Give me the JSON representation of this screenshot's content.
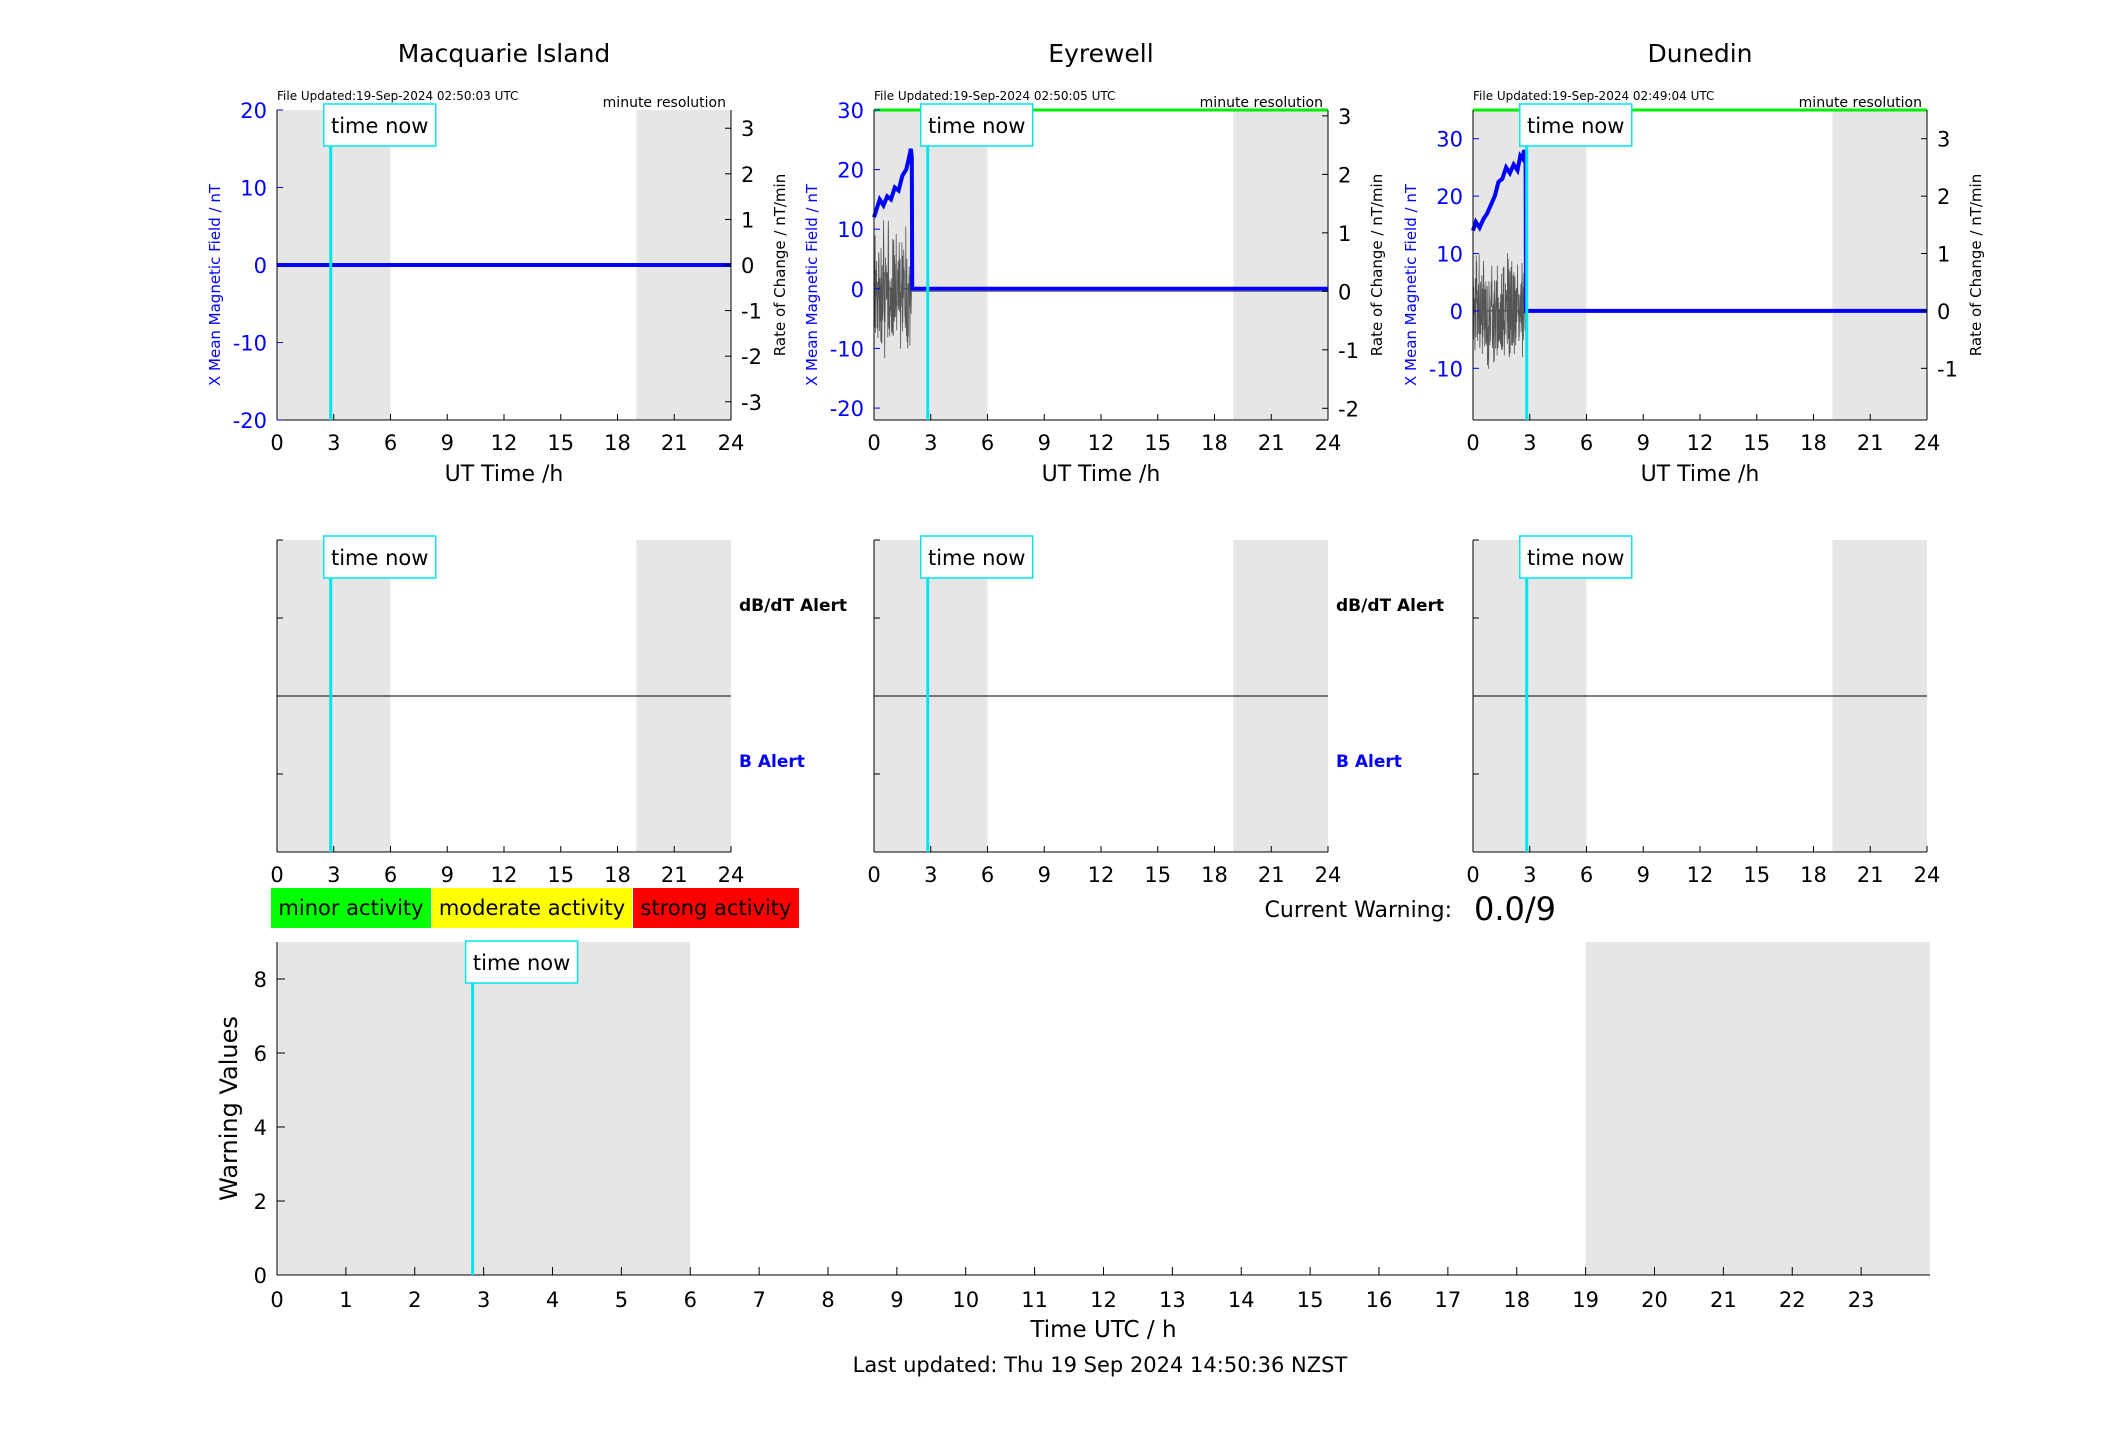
{
  "colors": {
    "shade": "#e6e6e6",
    "field_line": "#0000ff",
    "rate_line": "#555555",
    "time_now_line": "#00e5ee",
    "baseline_green": "#00ee00",
    "minor": "#00ff00",
    "moderate": "#ffff00",
    "strong": "#ff0000",
    "left_axis": "#0000ff",
    "b_alert": "#0000ff"
  },
  "time_now_label": "time now",
  "chart_data": [
    {
      "type": "line",
      "title": "Macquarie Island",
      "file_updated": "File Updated:19-Sep-2024 02:50:03 UTC",
      "resolution": "minute resolution",
      "xlabel": "UT Time /h",
      "ylabel_left": "X Mean Magnetic Field / nT",
      "ylabel_right": "Rate of Change / nT/min",
      "xlim": [
        0,
        24
      ],
      "ylim_left": [
        -20,
        20
      ],
      "ylim_right": [
        -3.4,
        3.4
      ],
      "xticks": [
        0,
        3,
        6,
        9,
        12,
        15,
        18,
        21,
        24
      ],
      "yticks_left": [
        -20,
        -10,
        0,
        10,
        20
      ],
      "yticks_right": [
        -3,
        -2,
        -1,
        0,
        1,
        2,
        3
      ],
      "shaded_hours": [
        [
          0,
          6
        ],
        [
          19,
          24
        ]
      ],
      "time_now_hour": 2.84,
      "green_level": null,
      "series": [
        {
          "role": "x_field",
          "x": [
            0,
            24
          ],
          "y": [
            0,
            0
          ]
        }
      ],
      "rate_noise": null
    },
    {
      "type": "line",
      "title": "Eyrewell",
      "file_updated": "File Updated:19-Sep-2024 02:50:05 UTC",
      "resolution": "minute resolution",
      "xlabel": "UT Time /h",
      "ylabel_left": "X Mean Magnetic Field / nT",
      "ylabel_right": "Rate of Change / nT/min",
      "xlim": [
        0,
        24
      ],
      "ylim_left": [
        -22,
        30
      ],
      "ylim_right": [
        -2.2,
        3.1
      ],
      "xticks": [
        0,
        3,
        6,
        9,
        12,
        15,
        18,
        21,
        24
      ],
      "yticks_left": [
        -20,
        -10,
        0,
        10,
        20,
        30
      ],
      "yticks_right": [
        -2,
        -1,
        0,
        1,
        2,
        3
      ],
      "shaded_hours": [
        [
          0,
          6
        ],
        [
          19,
          24
        ]
      ],
      "time_now_hour": 2.84,
      "green_level": 30,
      "series": [
        {
          "role": "x_field",
          "x": [
            0,
            0.1,
            0.3,
            0.5,
            0.7,
            0.9,
            1.1,
            1.3,
            1.5,
            1.7,
            1.85,
            1.95,
            2.0,
            2.02,
            24
          ],
          "y": [
            12,
            13,
            15,
            14,
            15.5,
            15,
            17,
            16.5,
            19,
            20,
            22,
            23.5,
            22,
            0,
            0
          ]
        }
      ],
      "rate_noise": {
        "x_end": 1.98,
        "amplitude": 1.3
      }
    },
    {
      "type": "line",
      "title": "Dunedin",
      "file_updated": "File Updated:19-Sep-2024 02:49:04 UTC",
      "resolution": "minute resolution",
      "xlabel": "UT Time /h",
      "ylabel_left": "X Mean Magnetic Field / nT",
      "ylabel_right": "Rate of Change / nT/min",
      "xlim": [
        0,
        24
      ],
      "ylim_left": [
        -19,
        35
      ],
      "ylim_right": [
        -1.9,
        3.5
      ],
      "xticks": [
        0,
        3,
        6,
        9,
        12,
        15,
        18,
        21,
        24
      ],
      "yticks_left": [
        -10,
        0,
        10,
        20,
        30
      ],
      "yticks_right": [
        -1,
        0,
        1,
        2,
        3
      ],
      "shaded_hours": [
        [
          0,
          6
        ],
        [
          19,
          24
        ]
      ],
      "time_now_hour": 2.84,
      "green_level": 35,
      "series": [
        {
          "role": "x_field",
          "x": [
            0,
            0.15,
            0.35,
            0.55,
            0.75,
            0.95,
            1.15,
            1.35,
            1.55,
            1.75,
            1.95,
            2.15,
            2.35,
            2.5,
            2.62,
            2.7,
            2.78,
            2.8,
            24
          ],
          "y": [
            14,
            15.5,
            14.5,
            16,
            17,
            18.5,
            20,
            22.5,
            23,
            25,
            24,
            25.5,
            24.5,
            27,
            26.5,
            28,
            27,
            0,
            0
          ]
        }
      ],
      "rate_noise": {
        "x_end": 2.78,
        "amplitude": 1.1
      }
    },
    {
      "type": "line",
      "title": "",
      "alerts": [
        "dB/dT Alert",
        "B Alert"
      ],
      "xlim": [
        0,
        24
      ],
      "xticks": [
        0,
        3,
        6,
        9,
        12,
        15,
        18,
        21,
        24
      ],
      "shaded_hours": [
        [
          0,
          6
        ],
        [
          19,
          24
        ]
      ],
      "time_now_hour": 2.84
    },
    {
      "type": "line",
      "title": "",
      "alerts": [
        "dB/dT Alert",
        "B Alert"
      ],
      "xlim": [
        0,
        24
      ],
      "xticks": [
        0,
        3,
        6,
        9,
        12,
        15,
        18,
        21,
        24
      ],
      "shaded_hours": [
        [
          0,
          6
        ],
        [
          19,
          24
        ]
      ],
      "time_now_hour": 2.84
    },
    {
      "type": "line",
      "title": "",
      "alerts": [],
      "xlim": [
        0,
        24
      ],
      "xticks": [
        0,
        3,
        6,
        9,
        12,
        15,
        18,
        21,
        24
      ],
      "shaded_hours": [
        [
          0,
          6
        ],
        [
          19,
          24
        ]
      ],
      "time_now_hour": 2.84
    },
    {
      "type": "line",
      "title": "",
      "xlabel": "Time UTC / h",
      "ylabel": "Warning Values",
      "xlim": [
        0,
        24
      ],
      "ylim": [
        0,
        9
      ],
      "xticks": [
        0,
        1,
        2,
        3,
        4,
        5,
        6,
        7,
        8,
        9,
        10,
        11,
        12,
        13,
        14,
        15,
        16,
        17,
        18,
        19,
        20,
        21,
        22,
        23
      ],
      "yticks": [
        0,
        2,
        4,
        6,
        8
      ],
      "shaded_hours": [
        [
          0,
          6
        ],
        [
          19,
          24
        ]
      ],
      "time_now_hour": 2.84
    }
  ],
  "legend": {
    "items": [
      {
        "label": "minor activity",
        "color": "#00ff00"
      },
      {
        "label": "moderate activity",
        "color": "#ffff00"
      },
      {
        "label": "strong activity",
        "color": "#ff0000"
      }
    ]
  },
  "current_warning": {
    "label": "Current Warning:",
    "value": "0.0/9"
  },
  "footer": {
    "last_updated": "Last updated: Thu 19 Sep 2024 14:50:36 NZST"
  }
}
